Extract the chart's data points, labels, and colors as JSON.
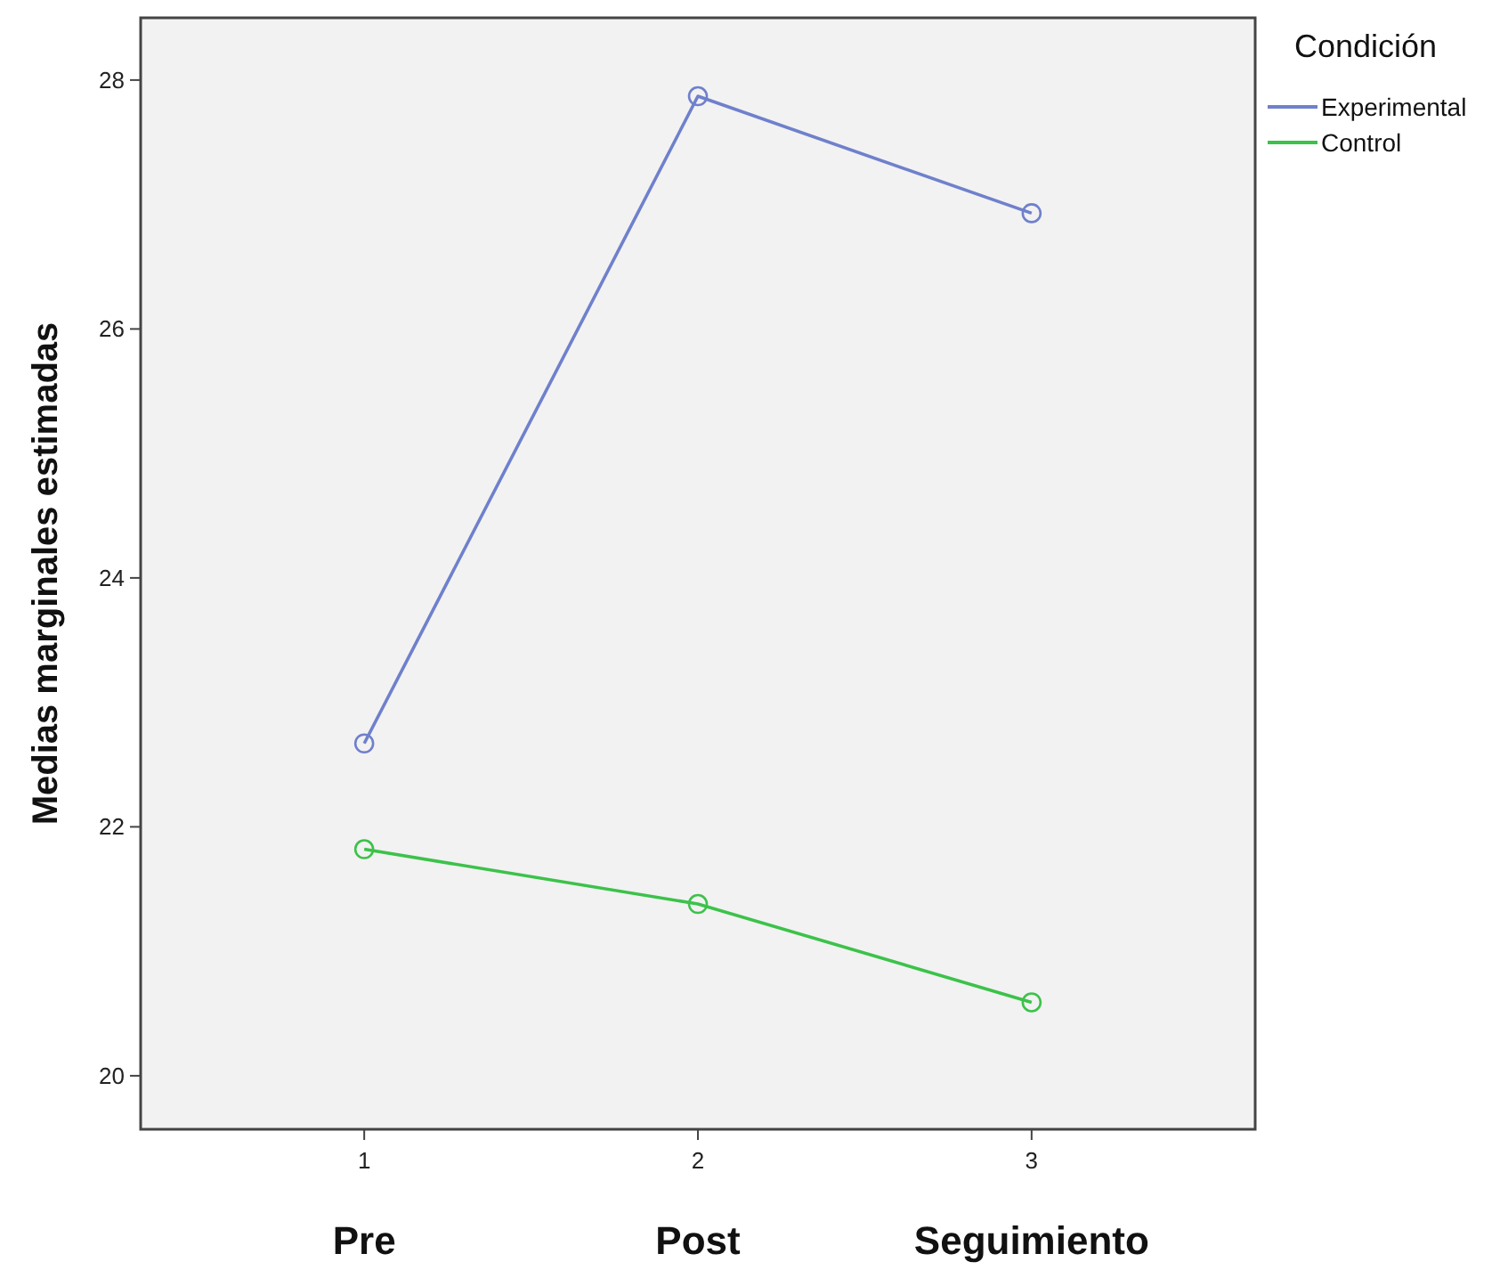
{
  "chart_data": {
    "type": "line",
    "categories": [
      "1",
      "2",
      "3"
    ],
    "ylabel": "Medias marginales estimadas",
    "legend_title": "Condición",
    "legend": "top right",
    "marker": "circle",
    "line_style": "solid",
    "grid": false,
    "ylim": [
      19.57,
      28.5
    ],
    "yticks": [
      20,
      22,
      24,
      26,
      28
    ],
    "series": [
      {
        "name": "Experimental",
        "color": "#6f80cc",
        "values": [
          22.67,
          27.87,
          26.93
        ]
      },
      {
        "name": "Control",
        "color": "#3cc24a",
        "values": [
          21.82,
          21.38,
          20.59
        ]
      }
    ],
    "annotations": [
      "Pre",
      "Post",
      "Seguimiento"
    ]
  }
}
